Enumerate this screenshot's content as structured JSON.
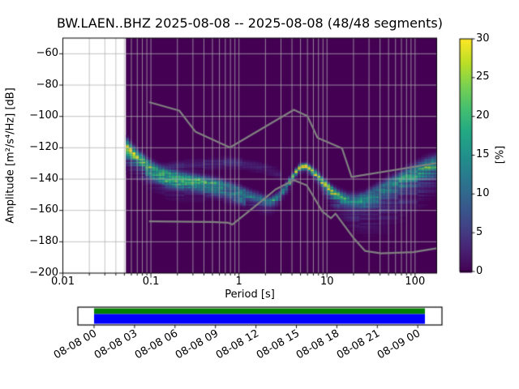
{
  "title": "BW.LAEN..BHZ   2025-08-08 -- 2025-08-08  (48/48 segments)",
  "station": {
    "network": "BW",
    "station": "LAEN",
    "channel": "BHZ",
    "date_start": "2025-08-08",
    "date_end": "2025-08-08",
    "segments_used": 48,
    "segments_total": 48
  },
  "axes": {
    "ylabel": "Amplitude [m²/s⁴/Hz] [dB]",
    "xlabel": "Period [s]",
    "x_ticks": [
      {
        "p": 0.01,
        "label": "0.01"
      },
      {
        "p": 0.1,
        "label": "0.1"
      },
      {
        "p": 1,
        "label": "1"
      },
      {
        "p": 10,
        "label": "10"
      },
      {
        "p": 100,
        "label": "100"
      }
    ],
    "y_ticks": [
      {
        "db": -60,
        "label": "−60"
      },
      {
        "db": -80,
        "label": "−80"
      },
      {
        "db": -100,
        "label": "−100"
      },
      {
        "db": -120,
        "label": "−120"
      },
      {
        "db": -140,
        "label": "−140"
      },
      {
        "db": -160,
        "label": "−160"
      },
      {
        "db": -180,
        "label": "−180"
      },
      {
        "db": -200,
        "label": "−200"
      }
    ]
  },
  "colorbar": {
    "label": "[%]",
    "min": 0,
    "max": 30,
    "colormap": "viridis",
    "ticks": [
      {
        "v": 0,
        "label": "0"
      },
      {
        "v": 5,
        "label": "5"
      },
      {
        "v": 10,
        "label": "10"
      },
      {
        "v": 15,
        "label": "15"
      },
      {
        "v": 20,
        "label": "20"
      },
      {
        "v": 25,
        "label": "25"
      },
      {
        "v": 30,
        "label": "30"
      }
    ]
  },
  "timeline": {
    "top_bar_color": "#008000",
    "bottom_bar_color": "#0000ff",
    "box_color": "#ffffff",
    "border_color": "#000000",
    "tick_labels": [
      "08-08 00",
      "08-08 03",
      "08-08 06",
      "08-08 09",
      "08-08 12",
      "08-08 15",
      "08-08 18",
      "08-08 21",
      "08-09 00"
    ]
  },
  "chart_data": {
    "type": "heatmap",
    "title": "BW.LAEN..BHZ   2025-08-08 -- 2025-08-08  (48/48 segments)",
    "xlabel": "Period [s]",
    "ylabel": "Amplitude [m²/s⁴/Hz] [dB]",
    "xscale": "log",
    "xlim": [
      0.01,
      176
    ],
    "ylim": [
      -200,
      -50
    ],
    "clim": [
      0,
      30
    ],
    "clabel": "[%]",
    "grid": true,
    "background_pct": 0,
    "data_period_min": 0.052,
    "db_bin_width": 1.0,
    "viridis_stops": [
      "#440154",
      "#482475",
      "#414487",
      "#355f8d",
      "#2a788e",
      "#21918c",
      "#22a884",
      "#44bf70",
      "#7ad151",
      "#bddf26",
      "#fde725"
    ],
    "grid_color": "#b0b0b0",
    "noise_model_color": "#808080",
    "ridge_columns": [
      "period_s",
      "mode_db",
      "peak_pct",
      "sigma_up_db",
      "sigma_down_db"
    ],
    "ridge": [
      [
        0.052,
        -118.5,
        26,
        3.0,
        6.5
      ],
      [
        0.062,
        -122.5,
        22,
        2.6,
        6.5
      ],
      [
        0.075,
        -126.5,
        19,
        2.4,
        6.5
      ],
      [
        0.09,
        -130.0,
        18,
        2.2,
        6.5
      ],
      [
        0.11,
        -133.0,
        17,
        2.2,
        6.5
      ],
      [
        0.15,
        -136.5,
        18,
        2.0,
        6.5
      ],
      [
        0.22,
        -138.5,
        17,
        2.0,
        6.5
      ],
      [
        0.32,
        -140.0,
        16,
        2.0,
        6.0
      ],
      [
        0.45,
        -141.5,
        15,
        2.0,
        5.5
      ],
      [
        0.65,
        -143.5,
        14,
        2.0,
        5.0
      ],
      [
        0.9,
        -146.0,
        13,
        2.0,
        5.0
      ],
      [
        1.3,
        -150.0,
        12,
        2.0,
        4.5
      ],
      [
        1.8,
        -152.8,
        12,
        2.0,
        4.5
      ],
      [
        2.3,
        -154.2,
        12,
        1.8,
        4.2
      ],
      [
        2.9,
        -150.5,
        13,
        1.8,
        3.2
      ],
      [
        3.6,
        -143.5,
        19,
        1.6,
        2.6
      ],
      [
        4.3,
        -136.5,
        25,
        1.4,
        2.0
      ],
      [
        5.0,
        -132.3,
        30,
        1.3,
        1.8
      ],
      [
        5.8,
        -132.0,
        30,
        1.3,
        1.8
      ],
      [
        6.8,
        -134.5,
        27,
        1.5,
        2.2
      ],
      [
        8.0,
        -138.5,
        25,
        1.6,
        3.0
      ],
      [
        9.5,
        -143.0,
        26,
        1.7,
        4.0
      ],
      [
        11.5,
        -147.5,
        24,
        1.8,
        5.0
      ],
      [
        14.0,
        -150.5,
        18,
        2.0,
        6.0
      ],
      [
        17.0,
        -152.3,
        14,
        2.0,
        7.5
      ],
      [
        21.0,
        -153.0,
        12,
        2.2,
        9.0
      ],
      [
        27.0,
        -151.5,
        12,
        2.2,
        11.0
      ],
      [
        35.0,
        -148.0,
        12,
        2.4,
        12.5
      ],
      [
        47.0,
        -144.0,
        12,
        2.6,
        13.0
      ],
      [
        62.0,
        -140.5,
        13,
        2.6,
        12.5
      ],
      [
        82.0,
        -137.0,
        14,
        2.8,
        12.0
      ],
      [
        105.0,
        -134.0,
        15,
        2.8,
        11.0
      ],
      [
        135.0,
        -131.5,
        16,
        3.0,
        10.0
      ],
      [
        176.0,
        -129.5,
        16,
        3.0,
        9.0
      ]
    ],
    "halo_columns": [
      "period_s",
      "center_db",
      "pct"
    ],
    "halo": [
      [
        0.13,
        -133.5,
        2.0
      ],
      [
        0.2,
        -131.5,
        3.0
      ],
      [
        0.35,
        -130.5,
        3.2
      ],
      [
        0.7,
        -129.5,
        3.2
      ],
      [
        1.2,
        -130.5,
        3.0
      ],
      [
        2.0,
        -133.0,
        2.6
      ],
      [
        3.0,
        -137.5,
        2.0
      ]
    ],
    "sub_ridge": {
      "p_range": [
        0.085,
        1.15
      ],
      "offset_db": -5.5,
      "pct": 8,
      "sigma": 1.8
    },
    "noise_models": {
      "high": [
        [
          0.097,
          -91
        ],
        [
          0.21,
          -96.3
        ],
        [
          0.32,
          -109.7
        ],
        [
          0.79,
          -119.8
        ],
        [
          4.2,
          -95.8
        ],
        [
          6.0,
          -99.8
        ],
        [
          7.8,
          -113.6
        ],
        [
          14.8,
          -120.3
        ],
        [
          19.0,
          -138.6
        ],
        [
          176,
          -129.8
        ]
      ],
      "low": [
        [
          0.097,
          -167
        ],
        [
          0.5,
          -167.3
        ],
        [
          0.76,
          -167.9
        ],
        [
          0.84,
          -169
        ],
        [
          1.9,
          -153
        ],
        [
          2.6,
          -146.6
        ],
        [
          4.2,
          -140.6
        ],
        [
          5.9,
          -144
        ],
        [
          8.8,
          -160.5
        ],
        [
          11.1,
          -165
        ],
        [
          12.5,
          -162
        ],
        [
          20,
          -177.6
        ],
        [
          27,
          -185.8
        ],
        [
          41,
          -187.4
        ],
        [
          95,
          -186.6
        ],
        [
          176,
          -184.2
        ]
      ]
    }
  }
}
